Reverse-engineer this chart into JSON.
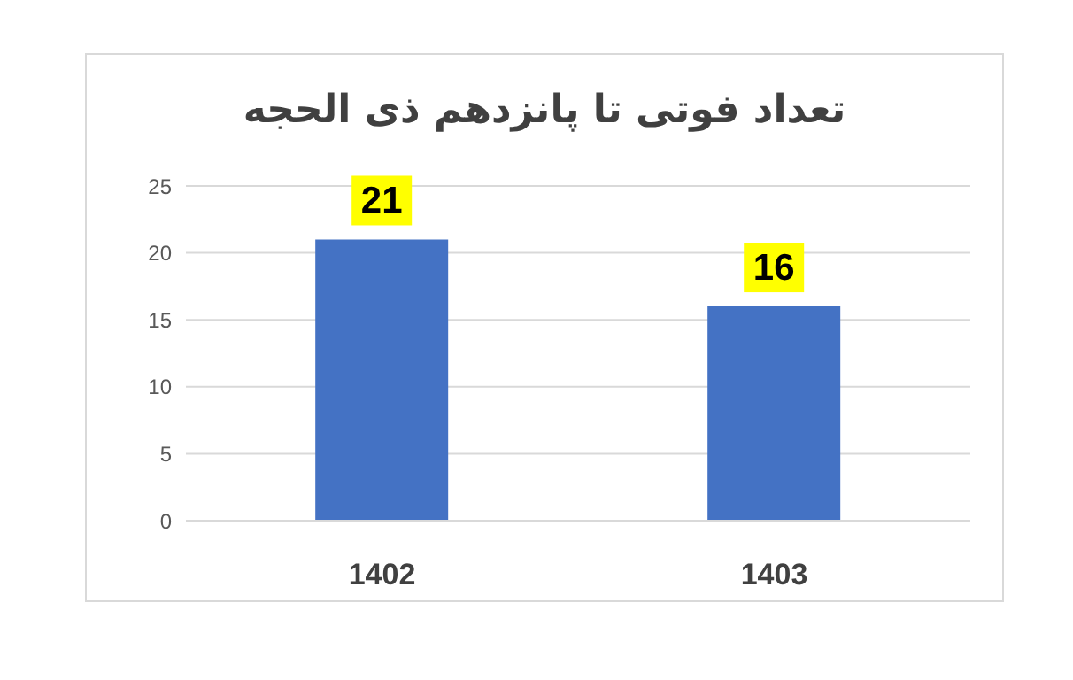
{
  "chart_data": {
    "type": "bar",
    "title": "تعداد فوتی تا پانزدهم ذی الحجه",
    "categories": [
      "1402",
      "1403"
    ],
    "values": [
      21,
      16
    ],
    "color": "#4472c4",
    "ylim": [
      0,
      25
    ],
    "yticks": [
      0,
      5,
      10,
      15,
      20,
      25
    ],
    "grid": "y",
    "data_labels": true
  }
}
